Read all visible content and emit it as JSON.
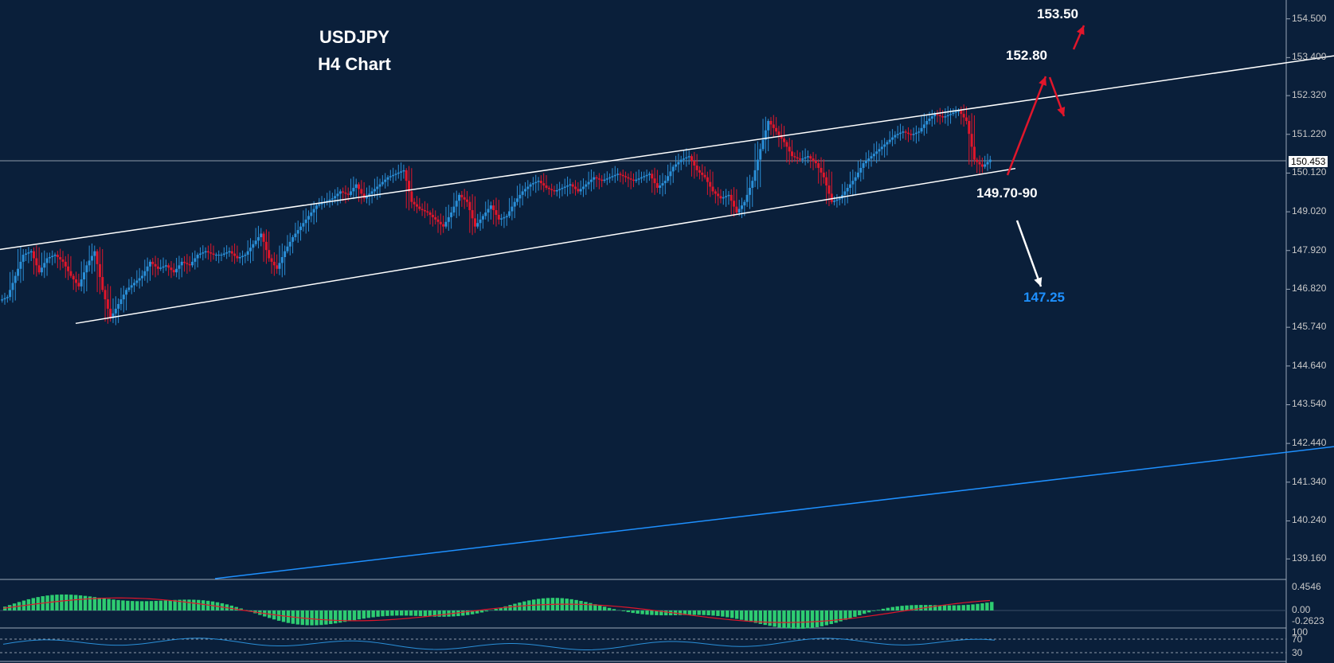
{
  "header": {
    "symbol": "USDJPY",
    "timeframe": "H4 Chart"
  },
  "current_price": "150.453",
  "annotations": {
    "target_high": "153.50",
    "target_mid": "152.80",
    "support": "149.70-90",
    "target_low": "147.25"
  },
  "price_axis": [
    "154.500",
    "153.400",
    "152.320",
    "151.220",
    "150.120",
    "149.020",
    "147.920",
    "146.820",
    "145.740",
    "144.640",
    "143.540",
    "142.440",
    "141.340",
    "140.240",
    "139.160"
  ],
  "macd_axis": [
    "0.4546",
    "0.00",
    "-0.2623"
  ],
  "rsi_axis": [
    "100",
    "70",
    "30"
  ],
  "colors": {
    "background": "#0a1f3a",
    "bull": "#2a8fd8",
    "bear": "#e0162b",
    "channel": "#ffffff",
    "blue_line": "#1e90ff",
    "macd_hist": "#2ecc71",
    "macd_signal": "#e0162b",
    "rsi": "#2a8fd8"
  },
  "chart_data": {
    "type": "candlestick",
    "title": "USDJPY",
    "subtitle": "H4 Chart",
    "ylim": [
      138.6,
      154.9
    ],
    "yticks": [
      154.5,
      153.4,
      152.32,
      151.22,
      150.12,
      149.02,
      147.92,
      146.82,
      145.74,
      144.64,
      143.54,
      142.44,
      141.34,
      140.24,
      139.16
    ],
    "current_price": 150.453,
    "price_series": [
      146.6,
      147.2,
      147.8,
      147.9,
      147.3,
      147.7,
      147.8,
      147.6,
      147.2,
      146.9,
      147.5,
      147.9,
      146.8,
      146.0,
      146.4,
      146.8,
      147.0,
      147.2,
      147.6,
      147.4,
      147.5,
      147.3,
      147.6,
      147.5,
      147.8,
      147.9,
      147.8,
      147.8,
      147.9,
      147.7,
      147.8,
      148.1,
      148.4,
      147.7,
      147.4,
      147.9,
      148.3,
      148.6,
      148.9,
      149.2,
      149.3,
      149.4,
      149.6,
      149.5,
      149.8,
      149.4,
      149.6,
      149.8,
      150.0,
      150.1,
      150.2,
      149.3,
      149.1,
      149.0,
      148.8,
      148.6,
      149.0,
      149.5,
      149.3,
      148.6,
      148.9,
      149.2,
      148.8,
      148.9,
      149.3,
      149.6,
      149.8,
      149.9,
      149.7,
      149.6,
      149.7,
      149.8,
      149.6,
      149.8,
      150.0,
      149.9,
      150.0,
      150.1,
      150.0,
      149.9,
      150.0,
      150.1,
      149.7,
      149.9,
      150.3,
      150.5,
      150.6,
      150.2,
      150.0,
      149.6,
      149.4,
      149.5,
      149.0,
      149.3,
      149.9,
      150.8,
      151.6,
      151.3,
      151.0,
      150.6,
      150.5,
      150.6,
      150.4,
      150.0,
      149.3,
      149.4,
      149.7,
      150.0,
      150.4,
      150.6,
      150.8,
      151.0,
      151.2,
      151.3,
      151.2,
      151.3,
      151.6,
      151.8,
      151.7,
      151.8,
      151.9,
      151.6,
      150.5,
      150.3,
      150.5
    ],
    "channel_upper": {
      "from": [
        0,
        147.95
      ],
      "to": [
        1675,
        153.45
      ]
    },
    "channel_lower": {
      "from": [
        95,
        145.85
      ],
      "to": [
        1275,
        150.25
      ]
    },
    "blue_trendline": {
      "from": [
        270,
        138.6
      ],
      "to": [
        1675,
        142.35
      ]
    },
    "scenario_up": [
      152.8,
      153.5
    ],
    "scenario_down": [
      149.7,
      147.25
    ],
    "indicators": {
      "macd": {
        "axis": [
          0.4546,
          0.0,
          -0.2623
        ]
      },
      "rsi": {
        "levels": [
          100,
          70,
          30
        ]
      }
    }
  }
}
